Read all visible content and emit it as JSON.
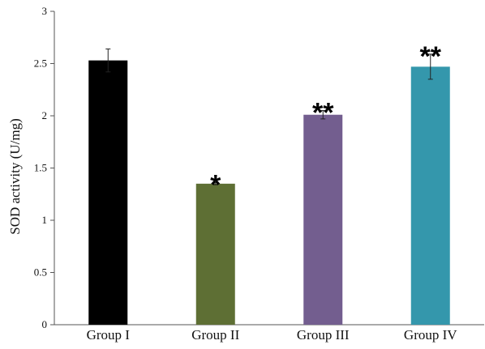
{
  "chart_data": {
    "type": "bar",
    "categories": [
      "Group I",
      "Group II",
      "Group III",
      "Group IV"
    ],
    "values": [
      2.53,
      1.35,
      2.01,
      2.47
    ],
    "errors": [
      0.11,
      0.01,
      0.04,
      0.12
    ],
    "significance": [
      "",
      "*",
      "**",
      "**"
    ],
    "colors": [
      "#000000",
      "#5e6f34",
      "#735e8f",
      "#3497ac"
    ],
    "ylabel": "SOD activity (U/mg)",
    "xlabel": "",
    "ylim": [
      0,
      3
    ],
    "yticks": [
      "0",
      "0.5",
      "1",
      "1.5",
      "2",
      "2.5",
      "3"
    ],
    "grid": false,
    "legend": "none"
  }
}
